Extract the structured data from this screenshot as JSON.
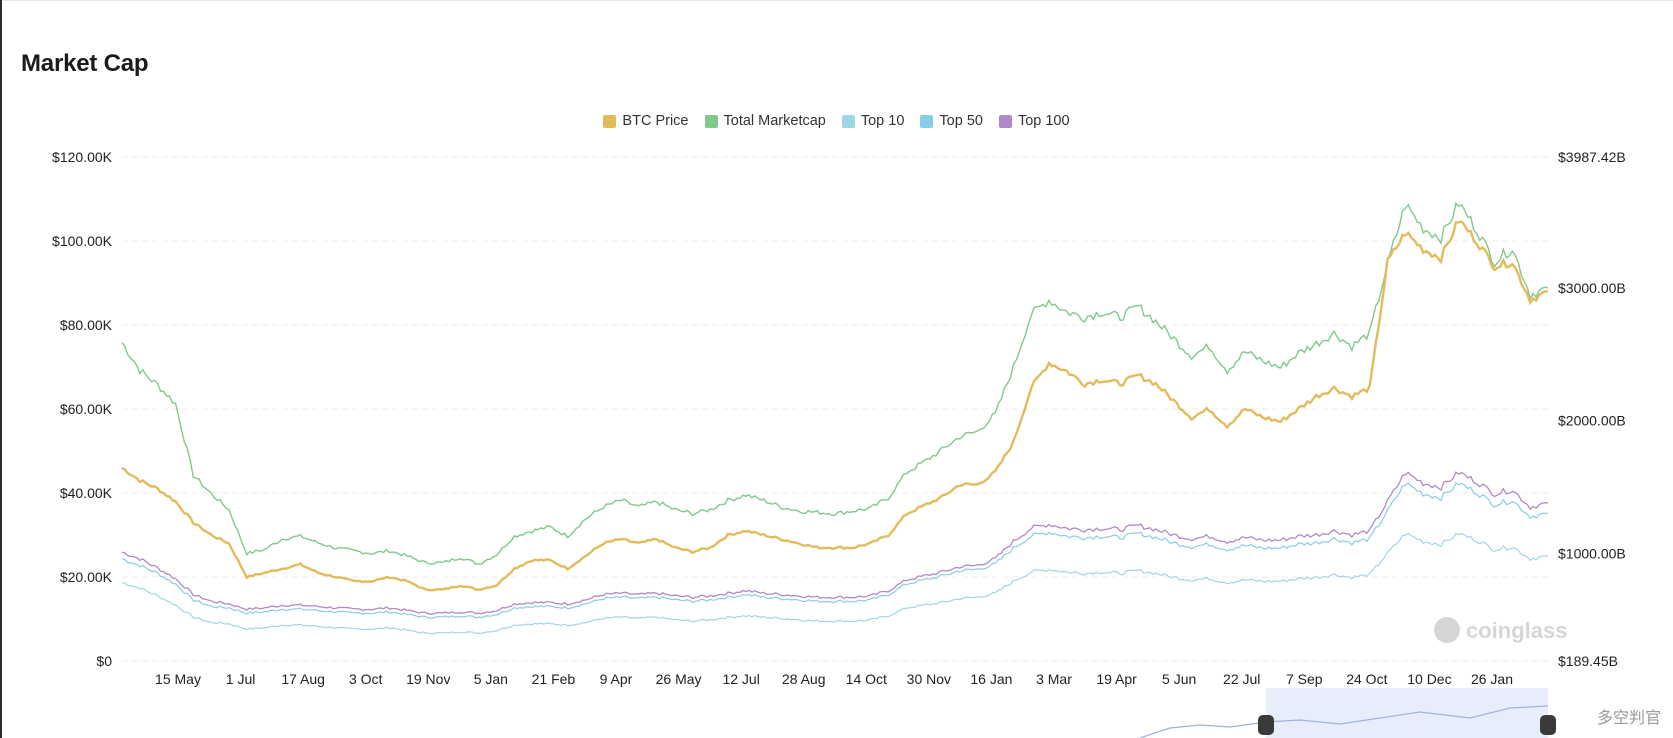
{
  "title": "Market Cap",
  "footer_watermark": "多空判官",
  "chart_data": {
    "type": "line",
    "title": "Market Cap",
    "colors": {
      "btc": "#e2bc5c",
      "total": "#7fc98b",
      "top10": "#9fd6e3",
      "top50": "#88cde6",
      "top100": "#b089c9"
    },
    "legend": [
      {
        "key": "btc",
        "label": "BTC Price"
      },
      {
        "key": "total",
        "label": "Total Marketcap"
      },
      {
        "key": "top10",
        "label": "Top 10"
      },
      {
        "key": "top50",
        "label": "Top 50"
      },
      {
        "key": "top100",
        "label": "Top 100"
      }
    ],
    "legend_position": "top-center",
    "x_tick_labels": [
      "15 May",
      "1 Jul",
      "17 Aug",
      "3 Oct",
      "19 Nov",
      "5 Jan",
      "21 Feb",
      "9 Apr",
      "26 May",
      "12 Jul",
      "28 Aug",
      "14 Oct",
      "30 Nov",
      "16 Jan",
      "3 Mar",
      "19 Apr",
      "5 Jun",
      "22 Jul",
      "7 Sep",
      "24 Oct",
      "10 Dec",
      "26 Jan"
    ],
    "y_left": {
      "ticks": [
        "$0",
        "$20.00K",
        "$40.00K",
        "$60.00K",
        "$80.00K",
        "$100.00K",
        "$120.00K"
      ],
      "range": [
        0,
        120000
      ]
    },
    "y_right": {
      "ticks": [
        "$189.45B",
        "$1000.00B",
        "$2000.00B",
        "$3000.00B",
        "$3987.42B"
      ],
      "range": [
        189.45,
        3987.42
      ]
    },
    "grid": true,
    "btc_price_k": [
      46,
      43,
      41,
      38,
      33,
      30,
      28,
      20,
      21,
      22,
      23,
      21,
      20,
      19,
      19,
      20,
      19,
      17,
      17,
      18,
      17,
      18,
      22,
      24,
      24,
      22,
      25,
      28,
      29,
      28,
      29,
      27,
      26,
      27,
      30,
      31,
      30,
      29,
      28,
      27,
      27,
      27,
      28,
      30,
      35,
      37,
      39,
      42,
      42,
      45,
      52,
      65,
      71,
      69,
      66,
      67,
      66,
      68,
      66,
      62,
      58,
      60,
      56,
      60,
      58,
      57,
      60,
      63,
      65,
      63,
      65,
      95,
      102,
      98,
      96,
      105,
      100,
      94,
      95,
      86,
      88
    ],
    "total_b": [
      2590,
      2380,
      2270,
      2130,
      1590,
      1450,
      1330,
      1000,
      1030,
      1110,
      1130,
      1080,
      1040,
      1020,
      1000,
      1020,
      980,
      930,
      930,
      970,
      920,
      990,
      1130,
      1170,
      1200,
      1130,
      1260,
      1350,
      1400,
      1350,
      1390,
      1330,
      1300,
      1330,
      1400,
      1440,
      1400,
      1350,
      1320,
      1310,
      1300,
      1320,
      1340,
      1420,
      1610,
      1690,
      1780,
      1880,
      1920,
      2050,
      2400,
      2800,
      2910,
      2820,
      2780,
      2820,
      2780,
      2860,
      2750,
      2620,
      2490,
      2560,
      2380,
      2520,
      2450,
      2400,
      2510,
      2580,
      2660,
      2560,
      2660,
      3180,
      3630,
      3450,
      3380,
      3640,
      3440,
      3200,
      3300,
      2950,
      3000
    ],
    "top10_b": [
      780,
      740,
      680,
      610,
      520,
      480,
      470,
      430,
      440,
      460,
      460,
      450,
      440,
      430,
      430,
      440,
      420,
      400,
      400,
      410,
      400,
      420,
      460,
      470,
      470,
      460,
      480,
      510,
      520,
      510,
      520,
      500,
      490,
      500,
      520,
      530,
      520,
      510,
      500,
      490,
      490,
      490,
      500,
      530,
      590,
      610,
      630,
      660,
      670,
      700,
      790,
      860,
      880,
      860,
      850,
      860,
      850,
      870,
      850,
      820,
      800,
      810,
      780,
      800,
      790,
      790,
      810,
      820,
      840,
      820,
      840,
      1000,
      1150,
      1090,
      1070,
      1150,
      1100,
      1030,
      1050,
      960,
      980
    ],
    "top50_b": [
      960,
      910,
      850,
      770,
      650,
      600,
      590,
      550,
      560,
      580,
      580,
      570,
      560,
      550,
      550,
      560,
      540,
      520,
      520,
      530,
      520,
      540,
      590,
      600,
      600,
      590,
      620,
      660,
      670,
      660,
      670,
      650,
      640,
      650,
      670,
      690,
      670,
      660,
      650,
      640,
      640,
      640,
      650,
      690,
      770,
      800,
      830,
      870,
      880,
      920,
      1040,
      1130,
      1160,
      1130,
      1120,
      1130,
      1120,
      1150,
      1120,
      1080,
      1050,
      1070,
      1030,
      1060,
      1040,
      1040,
      1070,
      1080,
      1110,
      1080,
      1110,
      1320,
      1530,
      1450,
      1420,
      1530,
      1460,
      1370,
      1400,
      1280,
      1300
    ],
    "top100_b": [
      1010,
      960,
      890,
      810,
      690,
      640,
      620,
      580,
      590,
      610,
      610,
      600,
      590,
      580,
      580,
      590,
      570,
      550,
      550,
      560,
      550,
      570,
      620,
      630,
      630,
      620,
      650,
      690,
      700,
      690,
      700,
      680,
      670,
      680,
      700,
      720,
      700,
      690,
      680,
      670,
      670,
      670,
      680,
      720,
      800,
      830,
      860,
      900,
      910,
      960,
      1090,
      1190,
      1220,
      1190,
      1180,
      1190,
      1180,
      1210,
      1180,
      1140,
      1110,
      1130,
      1090,
      1120,
      1100,
      1100,
      1130,
      1140,
      1170,
      1140,
      1170,
      1390,
      1610,
      1530,
      1500,
      1610,
      1540,
      1450,
      1480,
      1350,
      1380
    ]
  }
}
